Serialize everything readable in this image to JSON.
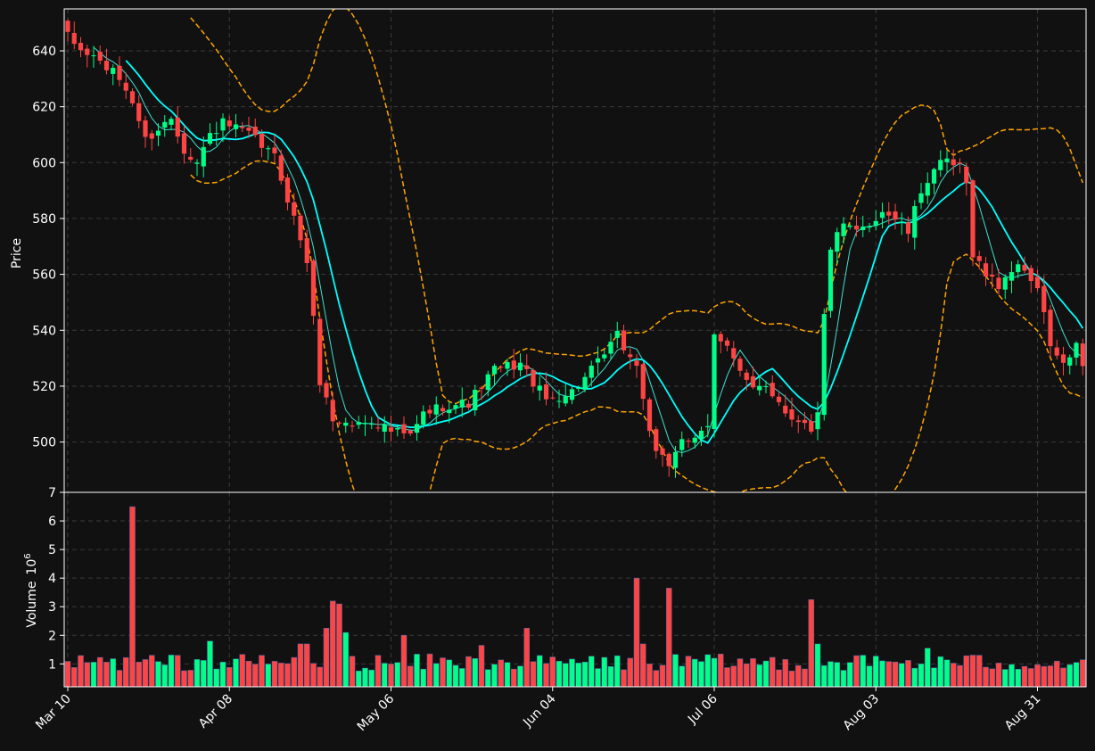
{
  "chart_data": {
    "type": "candlestick",
    "price_panel": {
      "ylabel": "Price",
      "ylim": [
        482,
        655
      ],
      "yticks": [
        500,
        520,
        540,
        560,
        580,
        600,
        620,
        640
      ],
      "grid": true
    },
    "volume_panel": {
      "ylabel": "Volume",
      "ylabel_exponent": "10",
      "ylabel_exponent_power": "6",
      "ylim": [
        0.2,
        7.0
      ],
      "yticks": [
        1,
        2,
        3,
        4,
        5,
        6,
        7
      ],
      "grid": true
    },
    "x_tick_labels": [
      {
        "index": 0,
        "label": "Mar 10"
      },
      {
        "index": 25,
        "label": "Apr 08"
      },
      {
        "index": 50,
        "label": "May 06"
      },
      {
        "index": 75,
        "label": "Jun 04"
      },
      {
        "index": 100,
        "label": "Jul 06"
      },
      {
        "index": 125,
        "label": "Aug 03"
      },
      {
        "index": 150,
        "label": "Aug 31"
      }
    ],
    "n_bars": 158,
    "colors": {
      "up": "#00ff88",
      "down": "#ff4444",
      "volume_edge": "#4466aa",
      "ma_fast": "#40e0d0",
      "ma_slow": "#00ffff",
      "bollinger": "#ffa500",
      "grid": "#3a3a3a",
      "background": "#111111",
      "frame": "#ffffff"
    },
    "close_anchors": [
      [
        0,
        645
      ],
      [
        2,
        640
      ],
      [
        4,
        638
      ],
      [
        6,
        634
      ],
      [
        8,
        630
      ],
      [
        10,
        622
      ],
      [
        12,
        608
      ],
      [
        14,
        612
      ],
      [
        16,
        616
      ],
      [
        18,
        605
      ],
      [
        20,
        600
      ],
      [
        22,
        610
      ],
      [
        24,
        614
      ],
      [
        26,
        612
      ],
      [
        28,
        610
      ],
      [
        30,
        606
      ],
      [
        32,
        602
      ],
      [
        35,
        580
      ],
      [
        37,
        565
      ],
      [
        39,
        522
      ],
      [
        41,
        508
      ],
      [
        44,
        506
      ],
      [
        47,
        508
      ],
      [
        50,
        504
      ],
      [
        53,
        502
      ],
      [
        55,
        510
      ],
      [
        58,
        513
      ],
      [
        62,
        514
      ],
      [
        66,
        526
      ],
      [
        70,
        528
      ],
      [
        74,
        515
      ],
      [
        78,
        518
      ],
      [
        82,
        528
      ],
      [
        85,
        538
      ],
      [
        87,
        530
      ],
      [
        88,
        528
      ],
      [
        89,
        515
      ],
      [
        91,
        495
      ],
      [
        93,
        492
      ],
      [
        95,
        502
      ],
      [
        97,
        500
      ],
      [
        99,
        505
      ],
      [
        100,
        538
      ],
      [
        102,
        536
      ],
      [
        104,
        525
      ],
      [
        106,
        518
      ],
      [
        108,
        520
      ],
      [
        110,
        515
      ],
      [
        112,
        508
      ],
      [
        114,
        508
      ],
      [
        115,
        505
      ],
      [
        116,
        510
      ],
      [
        117,
        545
      ],
      [
        118,
        570
      ],
      [
        120,
        577
      ],
      [
        122,
        575
      ],
      [
        124,
        578
      ],
      [
        126,
        583
      ],
      [
        128,
        580
      ],
      [
        130,
        575
      ],
      [
        132,
        590
      ],
      [
        134,
        598
      ],
      [
        136,
        600
      ],
      [
        138,
        598
      ],
      [
        139,
        592
      ],
      [
        140,
        568
      ],
      [
        142,
        560
      ],
      [
        144,
        556
      ],
      [
        146,
        562
      ],
      [
        148,
        562
      ],
      [
        150,
        555
      ],
      [
        151,
        545
      ],
      [
        152,
        535
      ],
      [
        153,
        530
      ],
      [
        154,
        528
      ],
      [
        155,
        530
      ],
      [
        156,
        534
      ],
      [
        157,
        526
      ]
    ],
    "volume_spikes": [
      [
        10,
        6.5
      ],
      [
        40,
        2.25
      ],
      [
        41,
        3.2
      ],
      [
        42,
        3.1
      ],
      [
        43,
        2.1
      ],
      [
        52,
        2.0
      ],
      [
        71,
        2.25
      ],
      [
        88,
        4.0
      ],
      [
        89,
        1.7
      ],
      [
        93,
        3.65
      ],
      [
        115,
        3.25
      ],
      [
        116,
        1.7
      ],
      [
        22,
        1.8
      ],
      [
        36,
        1.7
      ],
      [
        37,
        1.7
      ],
      [
        56,
        1.35
      ],
      [
        64,
        1.65
      ],
      [
        133,
        1.55
      ]
    ],
    "ma_fast_window": 5,
    "ma_slow_window": 10,
    "bollinger_window": 20,
    "bollinger_k": 2
  }
}
